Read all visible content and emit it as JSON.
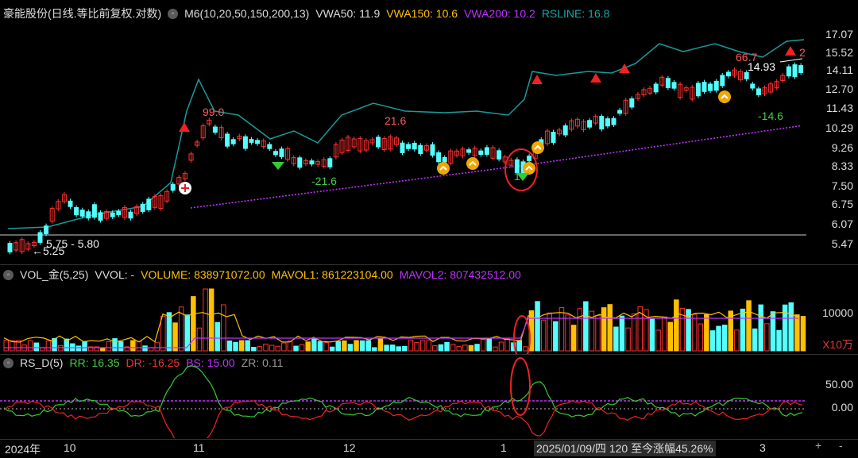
{
  "price_panel": {
    "title": "豪能股份(日线.等比前复权.对数)",
    "ma_label": "M6(10,20,50,150,200,13)",
    "vwa50": "VWA50: 11.9",
    "vwa150": "VWA150: 10.6",
    "vwa200": "VWA200: 10.2",
    "rsline": "RSLINE: 16.8",
    "y_ticks": [
      "17.07",
      "15.52",
      "14.11",
      "12.70",
      "11.43",
      "10.29",
      "9.26",
      "8.33",
      "7.50",
      "6.75",
      "6.07",
      "5.47"
    ],
    "annotations": {
      "range": "5.75 - 5.80",
      "low": "5.25",
      "rs99": "99.0",
      "rs216": "21.6",
      "rsm216": "-21.6",
      "rs667": "66.7",
      "price1493": "14.93",
      "rsm146": "-14.6",
      "edge2": "2",
      "circle_note": "1"
    }
  },
  "volume_panel": {
    "title": "VOL_金(5,25)",
    "vvol": "VVOL: -",
    "volume": "VOLUME: 838971072.00",
    "mavol1": "MAVOL1: 861223104.00",
    "mavol2": "MAVOL2: 807432512.00",
    "y_tick": "10000",
    "unit": "X10万"
  },
  "rs_panel": {
    "title": "RS_D(5)",
    "rr": "RR: 16.35",
    "dr": "DR: -16.25",
    "bs": "BS: 15.00",
    "zr": "ZR: 0.11",
    "y_ticks": [
      "50.00",
      "0.00"
    ]
  },
  "x_axis": {
    "labels": [
      "2024年",
      "10",
      "11",
      "12",
      "1",
      "3"
    ],
    "status": "2025/01/09/四 120 至今涨幅45.26%",
    "plus": "+",
    "minus": "-"
  },
  "colors": {
    "up": "#ff3232",
    "down": "#54ffff",
    "gold": "#ffc000",
    "purple": "#c032ff",
    "teal": "#1a9a9a"
  }
}
